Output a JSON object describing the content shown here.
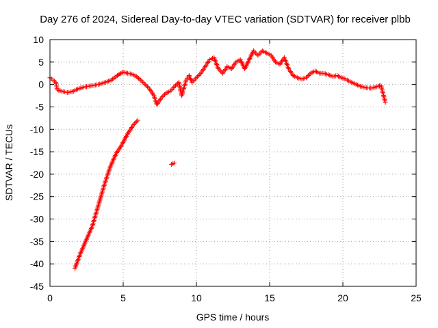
{
  "chart_data": {
    "type": "scatter",
    "title": "Day 276 of 2024, Sidereal Day-to-day VTEC variation (SDTVAR) for receiver plbb",
    "xlabel": "GPS time / hours",
    "ylabel": "SDTVAR / TECUs",
    "xlim": [
      0,
      25
    ],
    "ylim": [
      -45,
      10
    ],
    "x_ticks": [
      0,
      5,
      10,
      15,
      20,
      25
    ],
    "y_ticks": [
      10,
      5,
      0,
      -5,
      -10,
      -15,
      -20,
      -25,
      -30,
      -35,
      -40,
      -45
    ],
    "grid": true,
    "marker": "+",
    "series": [
      {
        "name": "main band",
        "color": "#ff0000",
        "points": [
          [
            0.0,
            1.5
          ],
          [
            0.2,
            1.0
          ],
          [
            0.4,
            0.5
          ],
          [
            0.5,
            -1.2
          ],
          [
            0.8,
            -1.5
          ],
          [
            1.2,
            -1.8
          ],
          [
            1.6,
            -1.5
          ],
          [
            1.9,
            -1.0
          ],
          [
            2.3,
            -0.6
          ],
          [
            2.8,
            -0.3
          ],
          [
            3.3,
            0.0
          ],
          [
            3.8,
            0.5
          ],
          [
            4.2,
            1.0
          ],
          [
            4.6,
            2.0
          ],
          [
            5.0,
            2.8
          ],
          [
            5.3,
            2.5
          ],
          [
            5.6,
            2.3
          ],
          [
            5.9,
            1.8
          ],
          [
            6.2,
            1.0
          ],
          [
            6.5,
            0.0
          ],
          [
            6.8,
            -1.0
          ],
          [
            7.1,
            -2.5
          ],
          [
            7.3,
            -4.5
          ],
          [
            7.6,
            -3.0
          ],
          [
            7.9,
            -2.0
          ],
          [
            8.2,
            -1.5
          ],
          [
            8.5,
            -0.5
          ],
          [
            8.8,
            0.5
          ],
          [
            9.0,
            -2.5
          ],
          [
            9.3,
            1.0
          ],
          [
            9.5,
            2.0
          ],
          [
            9.7,
            0.5
          ],
          [
            10.0,
            1.5
          ],
          [
            10.3,
            2.5
          ],
          [
            10.6,
            4.0
          ],
          [
            10.9,
            5.5
          ],
          [
            11.2,
            6.0
          ],
          [
            11.5,
            3.5
          ],
          [
            11.8,
            2.5
          ],
          [
            12.1,
            4.0
          ],
          [
            12.4,
            3.5
          ],
          [
            12.7,
            5.0
          ],
          [
            13.0,
            5.5
          ],
          [
            13.3,
            3.5
          ],
          [
            13.6,
            5.5
          ],
          [
            13.9,
            7.5
          ],
          [
            14.2,
            6.5
          ],
          [
            14.5,
            7.5
          ],
          [
            14.8,
            7.0
          ],
          [
            15.1,
            6.5
          ],
          [
            15.4,
            5.0
          ],
          [
            15.7,
            4.5
          ],
          [
            16.0,
            6.0
          ],
          [
            16.3,
            3.5
          ],
          [
            16.6,
            2.0
          ],
          [
            16.9,
            1.5
          ],
          [
            17.2,
            1.2
          ],
          [
            17.5,
            1.5
          ],
          [
            17.8,
            2.5
          ],
          [
            18.1,
            3.0
          ],
          [
            18.4,
            2.5
          ],
          [
            18.7,
            2.5
          ],
          [
            19.0,
            2.2
          ],
          [
            19.3,
            1.8
          ],
          [
            19.6,
            2.0
          ],
          [
            19.9,
            1.5
          ],
          [
            20.2,
            1.2
          ],
          [
            20.5,
            0.6
          ],
          [
            20.8,
            0.2
          ],
          [
            21.1,
            -0.3
          ],
          [
            21.4,
            -0.6
          ],
          [
            21.7,
            -0.8
          ],
          [
            22.0,
            -0.8
          ],
          [
            22.3,
            -0.5
          ],
          [
            22.6,
            -0.2
          ],
          [
            22.9,
            -4.0
          ]
        ]
      },
      {
        "name": "descending segment",
        "color": "#ff0000",
        "points": [
          [
            1.7,
            -41.0
          ],
          [
            2.1,
            -37.5
          ],
          [
            2.5,
            -34.5
          ],
          [
            2.9,
            -31.5
          ],
          [
            3.3,
            -27.0
          ],
          [
            3.7,
            -22.5
          ],
          [
            4.1,
            -18.5
          ],
          [
            4.5,
            -15.5
          ],
          [
            4.9,
            -13.5
          ],
          [
            5.3,
            -11.0
          ],
          [
            5.7,
            -9.0
          ],
          [
            6.0,
            -8.0
          ]
        ]
      },
      {
        "name": "outlier",
        "color": "#ff0000",
        "points": [
          [
            8.3,
            -17.8
          ],
          [
            8.5,
            -17.5
          ]
        ]
      }
    ]
  }
}
